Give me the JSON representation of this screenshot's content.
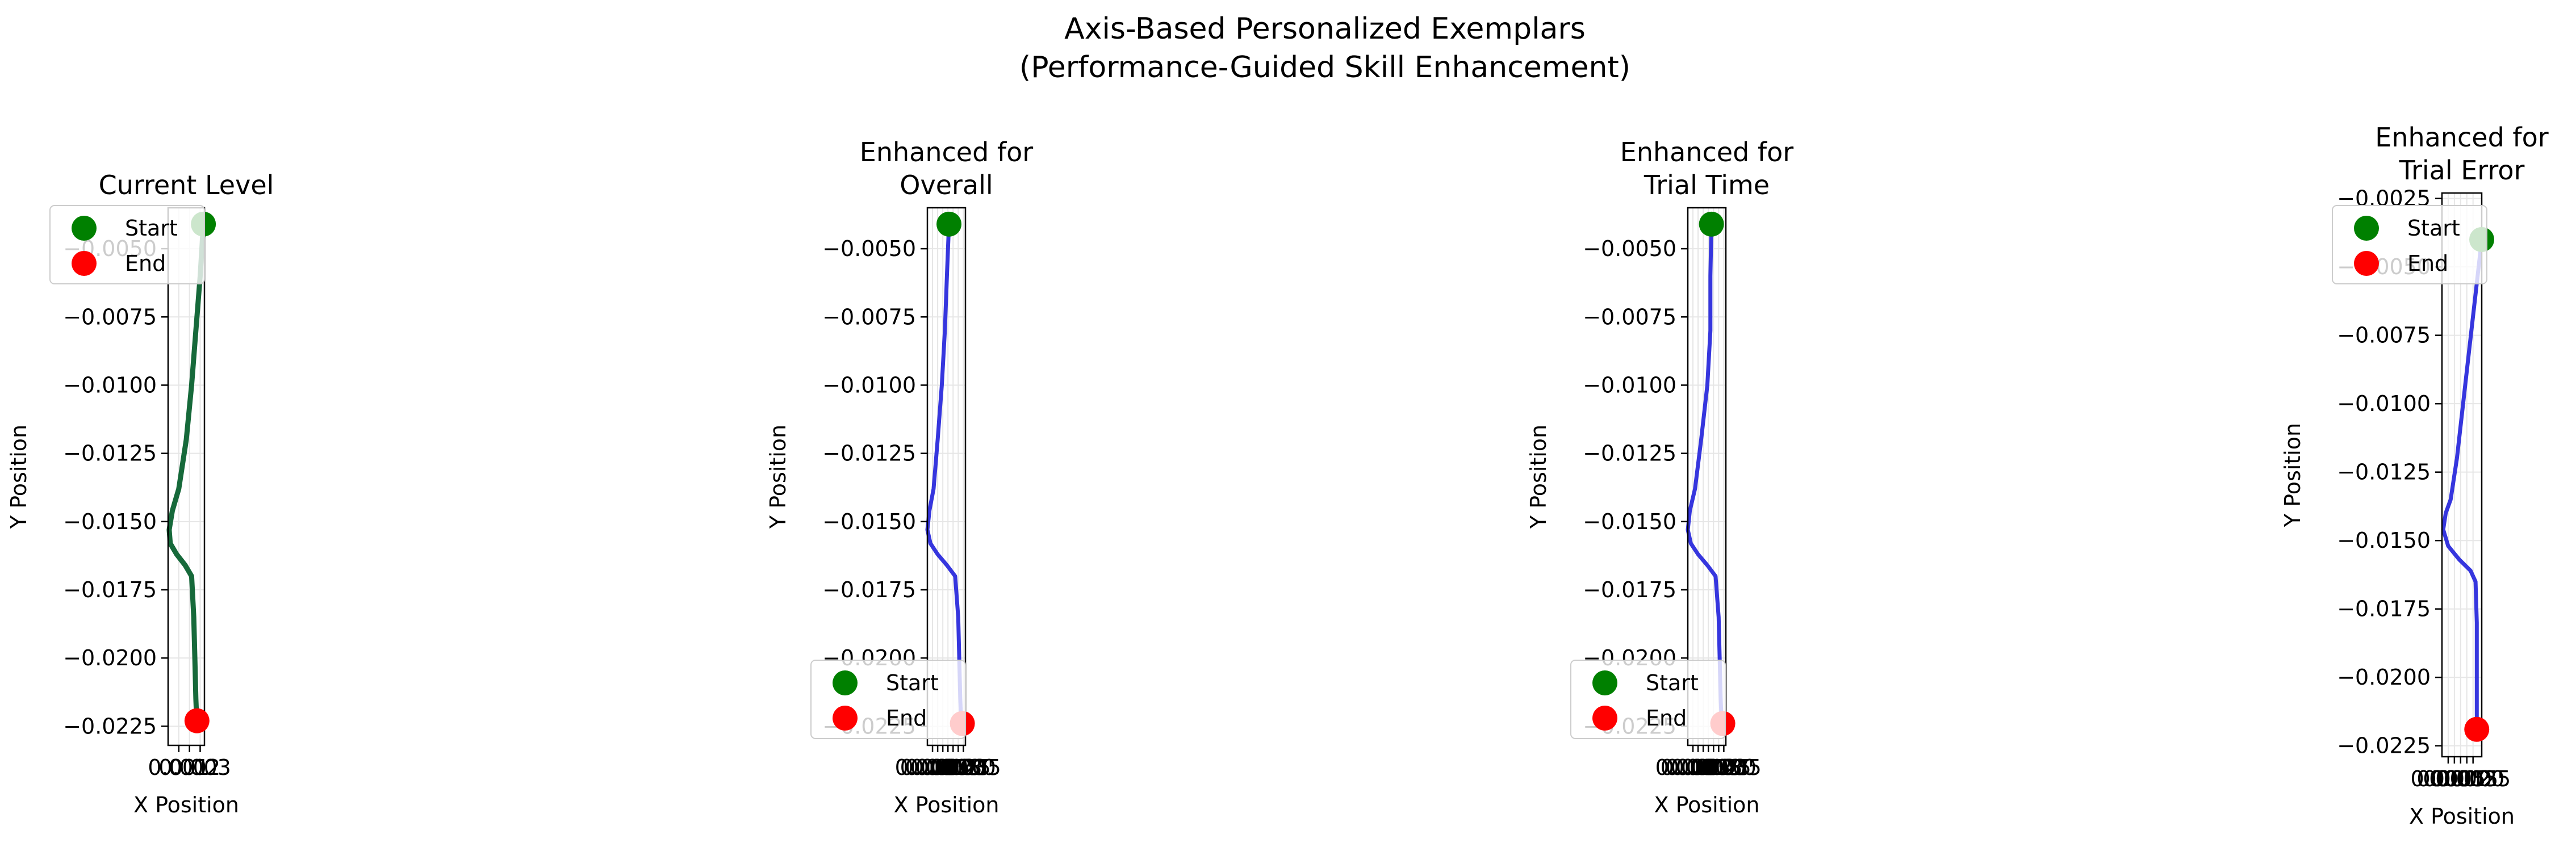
{
  "figure": {
    "title_line1": "Axis-Based Personalized Exemplars",
    "title_line2": "(Performance-Guided Skill Enhancement)"
  },
  "colors": {
    "current": "#16693a",
    "enhanced": "#2b2bdc",
    "start": "#008000",
    "end": "#ff0000",
    "grid": "#e6e6e6"
  },
  "legend": {
    "start": "Start",
    "end": "End"
  },
  "chart_data": [
    {
      "type": "line",
      "title": [
        "Current Level"
      ],
      "xlabel": "X Position",
      "ylabel": "Y Position",
      "xlim": [
        0.0,
        0.0034
      ],
      "ylim": [
        -0.0232,
        -0.0035
      ],
      "xticks": [
        0.001,
        0.002,
        0.003
      ],
      "xtick_labels": [
        "0.001",
        "0.002",
        "0.003"
      ],
      "yticks": [
        -0.005,
        -0.0075,
        -0.01,
        -0.0125,
        -0.015,
        -0.0175,
        -0.02,
        -0.0225
      ],
      "ytick_labels": [
        "−0.0050",
        "−0.0075",
        "−0.0100",
        "−0.0125",
        "−0.0150",
        "−0.0175",
        "−0.0200",
        "−0.0225"
      ],
      "grid": true,
      "legend_position": "upper-left",
      "series": [
        {
          "color_key": "current",
          "x": [
            0.0033,
            0.003,
            0.0026,
            0.0022,
            0.0017,
            0.001,
            0.0004,
            0.0001,
            0.0002,
            0.0008,
            0.0016,
            0.0022,
            0.0024,
            0.0025,
            0.0026,
            0.0027
          ],
          "y": [
            -0.0041,
            -0.006,
            -0.008,
            -0.01,
            -0.012,
            -0.0138,
            -0.0146,
            -0.0153,
            -0.0158,
            -0.0162,
            -0.0166,
            -0.017,
            -0.0185,
            -0.02,
            -0.0215,
            -0.0225
          ]
        }
      ],
      "start": [
        0.0033,
        -0.0041
      ],
      "end": [
        0.0027,
        -0.0223
      ]
    },
    {
      "type": "line",
      "title": [
        "Enhanced for",
        "Overall"
      ],
      "xlabel": "X Position",
      "ylabel": "Y Position",
      "xlim": [
        0.0,
        0.0037
      ],
      "ylim": [
        -0.0232,
        -0.0035
      ],
      "xticks": [
        0.0005,
        0.001,
        0.0015,
        0.002,
        0.0025,
        0.003,
        0.0035
      ],
      "xtick_labels": [
        "0.0005",
        "0.0010",
        "0.0015",
        "0.0020",
        "0.0025",
        "0.0030",
        "0.0035"
      ],
      "yticks": [
        -0.005,
        -0.0075,
        -0.01,
        -0.0125,
        -0.015,
        -0.0175,
        -0.02,
        -0.0225
      ],
      "ytick_labels": [
        "−0.0050",
        "−0.0075",
        "−0.0100",
        "−0.0125",
        "−0.0150",
        "−0.0175",
        "−0.0200",
        "−0.0225"
      ],
      "grid": true,
      "legend_position": "lower-left",
      "series": [
        {
          "color_key": "enhanced",
          "x": [
            0.0021,
            0.0019,
            0.0017,
            0.0014,
            0.001,
            0.0006,
            0.0002,
            0.0,
            0.0003,
            0.001,
            0.0019,
            0.0027,
            0.003,
            0.0031,
            0.0032,
            0.0033
          ],
          "y": [
            -0.0041,
            -0.006,
            -0.008,
            -0.01,
            -0.012,
            -0.0138,
            -0.0146,
            -0.0153,
            -0.0158,
            -0.0162,
            -0.0166,
            -0.017,
            -0.0185,
            -0.02,
            -0.0215,
            -0.0225
          ]
        }
      ],
      "start": [
        0.0021,
        -0.0041
      ],
      "end": [
        0.0034,
        -0.0224
      ]
    },
    {
      "type": "line",
      "title": [
        "Enhanced for",
        "Trial Time"
      ],
      "xlabel": "X Position",
      "ylabel": "Y Position",
      "xlim": [
        0.0,
        0.0037
      ],
      "ylim": [
        -0.0232,
        -0.0035
      ],
      "xticks": [
        0.0005,
        0.001,
        0.0015,
        0.002,
        0.0025,
        0.003,
        0.0035
      ],
      "xtick_labels": [
        "0.0005",
        "0.0010",
        "0.0015",
        "0.0020",
        "0.0025",
        "0.0030",
        "0.0035"
      ],
      "yticks": [
        -0.005,
        -0.0075,
        -0.01,
        -0.0125,
        -0.015,
        -0.0175,
        -0.02,
        -0.0225
      ],
      "ytick_labels": [
        "−0.0050",
        "−0.0075",
        "−0.0100",
        "−0.0125",
        "−0.0150",
        "−0.0175",
        "−0.0200",
        "−0.0225"
      ],
      "grid": true,
      "legend_position": "lower-left",
      "series": [
        {
          "color_key": "enhanced",
          "x": [
            0.0023,
            0.0022,
            0.0022,
            0.0019,
            0.0013,
            0.0007,
            0.0002,
            0.0,
            0.0003,
            0.001,
            0.0019,
            0.0027,
            0.003,
            0.0031,
            0.0032,
            0.0033
          ],
          "y": [
            -0.0041,
            -0.006,
            -0.008,
            -0.01,
            -0.012,
            -0.0138,
            -0.0146,
            -0.0153,
            -0.0158,
            -0.0162,
            -0.0166,
            -0.017,
            -0.0185,
            -0.02,
            -0.0215,
            -0.0225
          ]
        }
      ],
      "start": [
        0.0023,
        -0.0041
      ],
      "end": [
        0.0034,
        -0.0224
      ]
    },
    {
      "type": "line",
      "title": [
        "Enhanced for",
        "Trial Error"
      ],
      "xlabel": "X Position",
      "ylabel": "Y Position",
      "xlim": [
        0.0,
        0.0032
      ],
      "ylim": [
        -0.0229,
        -0.0023
      ],
      "xticks": [
        0.0005,
        0.001,
        0.0015,
        0.002,
        0.0025
      ],
      "xtick_labels": [
        "0.0005",
        "0.0010",
        "0.0015",
        "0.0020",
        "0.0025"
      ],
      "yticks": [
        -0.0025,
        -0.005,
        -0.0075,
        -0.01,
        -0.0125,
        -0.015,
        -0.0175,
        -0.02,
        -0.0225
      ],
      "ytick_labels": [
        "−0.0025",
        "−0.0050",
        "−0.0075",
        "−0.0100",
        "−0.0125",
        "−0.0150",
        "−0.0175",
        "−0.0200",
        "−0.0225"
      ],
      "grid": true,
      "legend_position": "upper-left",
      "series": [
        {
          "color_key": "enhanced",
          "x": [
            0.0032,
            0.0027,
            0.0022,
            0.0017,
            0.0012,
            0.0007,
            0.0003,
            0.0001,
            0.0005,
            0.0014,
            0.0023,
            0.0027,
            0.0028,
            0.0028,
            0.0028,
            0.0028
          ],
          "y": [
            -0.004,
            -0.006,
            -0.008,
            -0.01,
            -0.012,
            -0.0135,
            -0.014,
            -0.0146,
            -0.0152,
            -0.0157,
            -0.0161,
            -0.0165,
            -0.018,
            -0.0195,
            -0.021,
            -0.0219
          ]
        }
      ],
      "start": [
        0.0032,
        -0.004
      ],
      "end": [
        0.0028,
        -0.0219
      ]
    }
  ]
}
